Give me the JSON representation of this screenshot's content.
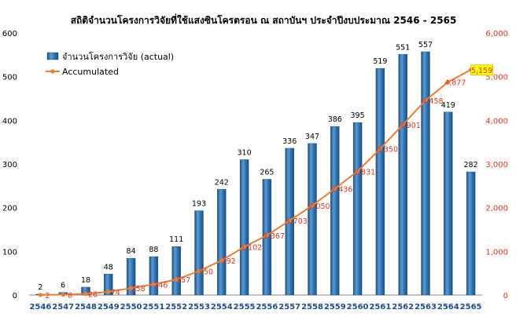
{
  "chart_data": {
    "type": "bar+line",
    "title": "สถิติจำนวนโครงการวิจัยที่ใช้แสงซินโครตรอน ณ สถาบันฯ ประจำปีงบประมาณ 2546 - 2565",
    "categories": [
      "2546",
      "2547",
      "2548",
      "2549",
      "2550",
      "2551",
      "2552",
      "2553",
      "2554",
      "2555",
      "2556",
      "2557",
      "2558",
      "2559",
      "2560",
      "2561",
      "2562",
      "2563",
      "2564",
      "2565"
    ],
    "series": [
      {
        "name": "จำนวนโครงการวิจัย (actual)",
        "type": "bar",
        "axis": "left",
        "values": [
          2,
          6,
          18,
          48,
          84,
          88,
          111,
          193,
          242,
          310,
          265,
          336,
          347,
          386,
          395,
          519,
          551,
          557,
          419,
          282
        ],
        "labels": [
          "2",
          "6",
          "18",
          "48",
          "84",
          "88",
          "111",
          "193",
          "242",
          "310",
          "265",
          "336",
          "347",
          "386",
          "395",
          "519",
          "551",
          "557",
          "419",
          "282"
        ]
      },
      {
        "name": "Accumulated",
        "type": "line",
        "axis": "right",
        "values": [
          2,
          8,
          26,
          74,
          158,
          246,
          357,
          550,
          792,
          1102,
          1367,
          1703,
          2050,
          2436,
          2831,
          3350,
          3901,
          4458,
          4877,
          5159
        ],
        "labels": [
          "2",
          "8",
          "26",
          "74",
          "158",
          "246",
          "357",
          "550",
          "792",
          "1,102",
          "1,367",
          "1,703",
          "2,050",
          "2,436",
          "2,831",
          "3,350",
          "3,901",
          "4,458",
          "4,877",
          "5,159"
        ]
      }
    ],
    "y_left": {
      "min": 0,
      "max": 600,
      "ticks": [
        "0",
        "100",
        "200",
        "300",
        "400",
        "500",
        "600"
      ]
    },
    "y_right": {
      "min": 0,
      "max": 6000,
      "ticks": [
        "0",
        "1,000",
        "2,000",
        "3,000",
        "4,000",
        "5,000",
        "6,000"
      ]
    },
    "grid": false,
    "legend": "top-left",
    "colors": {
      "bar_top": "#5b9bd5",
      "bar_mid": "#2e75b6",
      "bar_dark": "#1f4e79",
      "line": "#ed7d31",
      "line_label": "#e23b1f",
      "right_axis": "#e23b1f",
      "x_ticks": "#1f4e8c",
      "highlight": "#ffff00"
    }
  }
}
